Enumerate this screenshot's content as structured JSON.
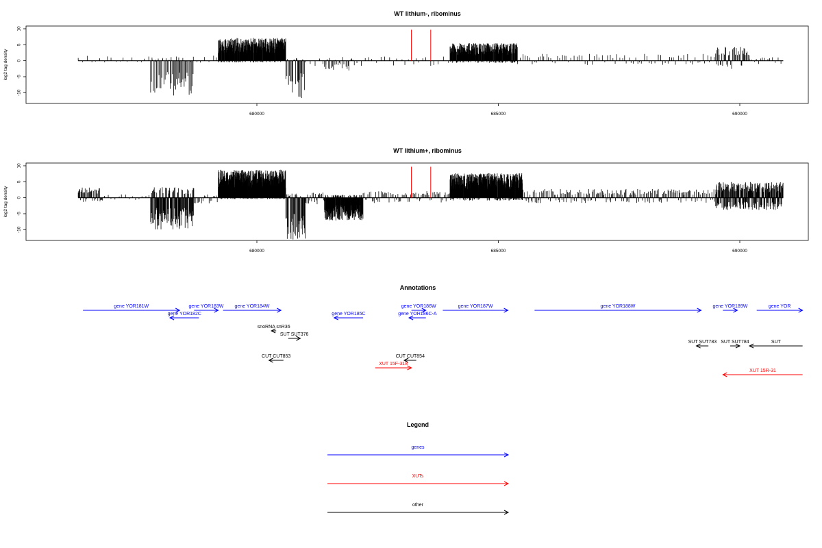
{
  "chart_data": [
    {
      "type": "bar",
      "title": "WT lithium-, ribominus",
      "xlabel": "",
      "ylabel": "log2 tag density",
      "xlim": [
        676200,
        691200
      ],
      "ylim": [
        -12.5,
        10
      ],
      "yticks": [
        10,
        5,
        0,
        -5,
        -10
      ],
      "xticks": [
        680000,
        685000,
        690000
      ],
      "markers": [
        683200,
        683600
      ],
      "marker_color": "#ff0000",
      "segments": [
        {
          "from": 676300,
          "to": 679200,
          "pos": 1.5,
          "neg": 0.5,
          "dens": 0.012
        },
        {
          "from": 677800,
          "to": 678700,
          "pos": 0.6,
          "neg": 10.0,
          "dens": 0.05
        },
        {
          "from": 679200,
          "to": 680600,
          "pos": 6.5,
          "neg": 0.5,
          "dens": 0.3
        },
        {
          "from": 680600,
          "to": 681000,
          "pos": 0.8,
          "neg": 11.0,
          "dens": 0.06
        },
        {
          "from": 681000,
          "to": 684000,
          "pos": 1.2,
          "neg": 1.5,
          "dens": 0.012
        },
        {
          "from": 681400,
          "to": 682000,
          "pos": 0.5,
          "neg": 3.0,
          "dens": 0.03
        },
        {
          "from": 684000,
          "to": 685400,
          "pos": 5.0,
          "neg": 0.6,
          "dens": 0.25
        },
        {
          "from": 685400,
          "to": 689500,
          "pos": 2.0,
          "neg": 1.2,
          "dens": 0.02
        },
        {
          "from": 689500,
          "to": 690200,
          "pos": 4.0,
          "neg": 2.5,
          "dens": 0.06
        },
        {
          "from": 690200,
          "to": 690900,
          "pos": 1.0,
          "neg": 1.0,
          "dens": 0.02
        }
      ]
    },
    {
      "type": "bar",
      "title": "WT lithium+, ribominus",
      "xlabel": "",
      "ylabel": "log2 tag density",
      "xlim": [
        676200,
        691200
      ],
      "ylim": [
        -12.5,
        10
      ],
      "yticks": [
        10,
        5,
        0,
        -5,
        -10
      ],
      "xticks": [
        680000,
        685000,
        690000
      ],
      "markers": [
        683200,
        683600
      ],
      "marker_color": "#ff0000",
      "segments": [
        {
          "from": 676300,
          "to": 676800,
          "pos": 3.0,
          "neg": 1.2,
          "dens": 0.08
        },
        {
          "from": 676800,
          "to": 677800,
          "pos": 1.0,
          "neg": 1.0,
          "dens": 0.015
        },
        {
          "from": 677800,
          "to": 678700,
          "pos": 3.0,
          "neg": 9.0,
          "dens": 0.15
        },
        {
          "from": 678700,
          "to": 679200,
          "pos": 1.0,
          "neg": 2.0,
          "dens": 0.03
        },
        {
          "from": 679200,
          "to": 680600,
          "pos": 8.0,
          "neg": 0.4,
          "dens": 0.4
        },
        {
          "from": 680600,
          "to": 681000,
          "pos": 1.2,
          "neg": 12.0,
          "dens": 0.1
        },
        {
          "from": 681000,
          "to": 681400,
          "pos": 2.0,
          "neg": 2.0,
          "dens": 0.05
        },
        {
          "from": 681400,
          "to": 682200,
          "pos": 0.8,
          "neg": 6.5,
          "dens": 0.3
        },
        {
          "from": 682200,
          "to": 684000,
          "pos": 2.0,
          "neg": 1.5,
          "dens": 0.04
        },
        {
          "from": 684000,
          "to": 685500,
          "pos": 7.0,
          "neg": 0.8,
          "dens": 0.35
        },
        {
          "from": 685500,
          "to": 689500,
          "pos": 2.5,
          "neg": 1.5,
          "dens": 0.05
        },
        {
          "from": 689500,
          "to": 690900,
          "pos": 4.5,
          "neg": 3.5,
          "dens": 0.2
        }
      ]
    }
  ],
  "annotations": {
    "title": "Annotations",
    "items": [
      {
        "label": "gene YOR181W",
        "start": 676400,
        "end": 678400,
        "row": 0,
        "strand": "+",
        "color": "#0000ff"
      },
      {
        "label": "gene YOR182C",
        "start": 678200,
        "end": 678800,
        "row": 1,
        "strand": "-",
        "color": "#0000ff"
      },
      {
        "label": "gene YOR183W",
        "start": 678700,
        "end": 679200,
        "row": 0,
        "strand": "+",
        "color": "#0000ff"
      },
      {
        "label": "gene YOR184W",
        "start": 679300,
        "end": 680500,
        "row": 0,
        "strand": "+",
        "color": "#0000ff"
      },
      {
        "label": "gene YOR185C",
        "start": 681600,
        "end": 682200,
        "row": 1,
        "strand": "-",
        "color": "#0000ff"
      },
      {
        "label": "gene YOR186W",
        "start": 683200,
        "end": 683500,
        "row": 0,
        "strand": "+",
        "color": "#0000ff"
      },
      {
        "label": "gene YOR186C-A",
        "start": 683150,
        "end": 683500,
        "row": 1,
        "strand": "-",
        "color": "#0000ff"
      },
      {
        "label": "gene YOR187W",
        "start": 683850,
        "end": 685200,
        "row": 0,
        "strand": "+",
        "color": "#0000ff"
      },
      {
        "label": "gene YOR188W",
        "start": 685750,
        "end": 689200,
        "row": 0,
        "strand": "+",
        "color": "#0000ff"
      },
      {
        "label": "gene YOR189W",
        "start": 689650,
        "end": 689950,
        "row": 0,
        "strand": "+",
        "color": "#0000ff"
      },
      {
        "label": "gene YOR",
        "start": 690350,
        "end": 691300,
        "row": 0,
        "strand": "+",
        "color": "#0000ff"
      },
      {
        "label": "snoRNA snR36",
        "start": 680300,
        "end": 680400,
        "row": 2,
        "strand": "-",
        "color": "#000000"
      },
      {
        "label": "SUT SUT376",
        "start": 680650,
        "end": 680900,
        "row": 3,
        "strand": "+",
        "color": "#000000"
      },
      {
        "label": "SUT SUT783",
        "start": 689100,
        "end": 689350,
        "row": 4,
        "strand": "-",
        "color": "#000000"
      },
      {
        "label": "SUT SUT784",
        "start": 689800,
        "end": 690000,
        "row": 4,
        "strand": "+",
        "color": "#000000"
      },
      {
        "label": "SUT",
        "start": 690200,
        "end": 691300,
        "row": 4,
        "strand": "-",
        "color": "#000000"
      },
      {
        "label": "CUT CUT853",
        "start": 680250,
        "end": 680550,
        "row": 5,
        "strand": "-",
        "color": "#000000"
      },
      {
        "label": "CUT CUT854",
        "start": 683050,
        "end": 683300,
        "row": 5,
        "strand": "-",
        "color": "#000000"
      },
      {
        "label": "XUT 15F-318",
        "start": 682450,
        "end": 683200,
        "row": 6,
        "strand": "+",
        "color": "#ff0000"
      },
      {
        "label": "XUT 15R-31",
        "start": 689650,
        "end": 691300,
        "row": 7,
        "strand": "-",
        "color": "#ff0000"
      }
    ]
  },
  "legend": {
    "title": "Legend",
    "items": [
      {
        "label": "genes",
        "color": "#0000ff"
      },
      {
        "label": "XUTs",
        "color": "#ff0000"
      },
      {
        "label": "other",
        "color": "#000000"
      }
    ]
  }
}
